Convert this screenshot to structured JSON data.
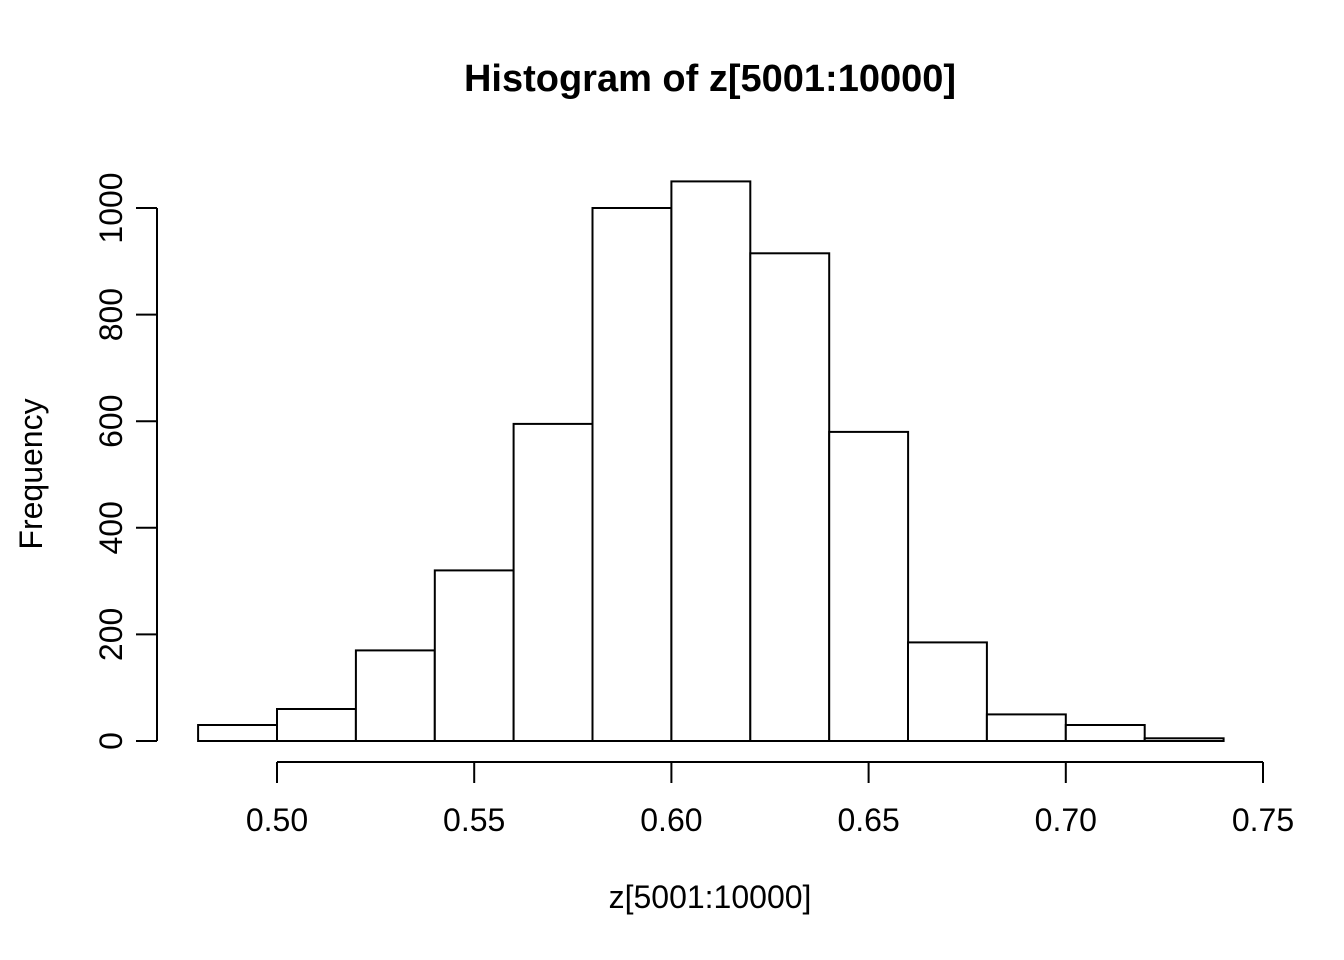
{
  "chart_data": {
    "type": "bar",
    "subtype": "histogram",
    "title": "Histogram of z[5001:10000]",
    "xlabel": "z[5001:10000]",
    "ylabel": "Frequency",
    "bin_width": 0.02,
    "bin_edges": [
      0.48,
      0.5,
      0.52,
      0.54,
      0.56,
      0.58,
      0.6,
      0.62,
      0.64,
      0.66,
      0.68,
      0.7,
      0.72,
      0.74
    ],
    "counts": [
      30,
      60,
      170,
      320,
      595,
      1000,
      1050,
      915,
      580,
      185,
      50,
      30,
      5
    ],
    "x_ticks": [
      0.5,
      0.55,
      0.6,
      0.65,
      0.7,
      0.75
    ],
    "x_tick_labels": [
      "0.50",
      "0.55",
      "0.60",
      "0.65",
      "0.70",
      "0.75"
    ],
    "y_ticks": [
      0,
      200,
      400,
      600,
      800,
      1000
    ],
    "y_tick_labels": [
      "0",
      "200",
      "400",
      "600",
      "800",
      "1000"
    ],
    "xlim": [
      0.48,
      0.75
    ],
    "ylim": [
      0,
      1050
    ],
    "grid": false,
    "legend": null,
    "bar_fill": "#ffffff",
    "bar_stroke": "#000000",
    "axis_color": "#000000",
    "background_color": "#ffffff"
  }
}
